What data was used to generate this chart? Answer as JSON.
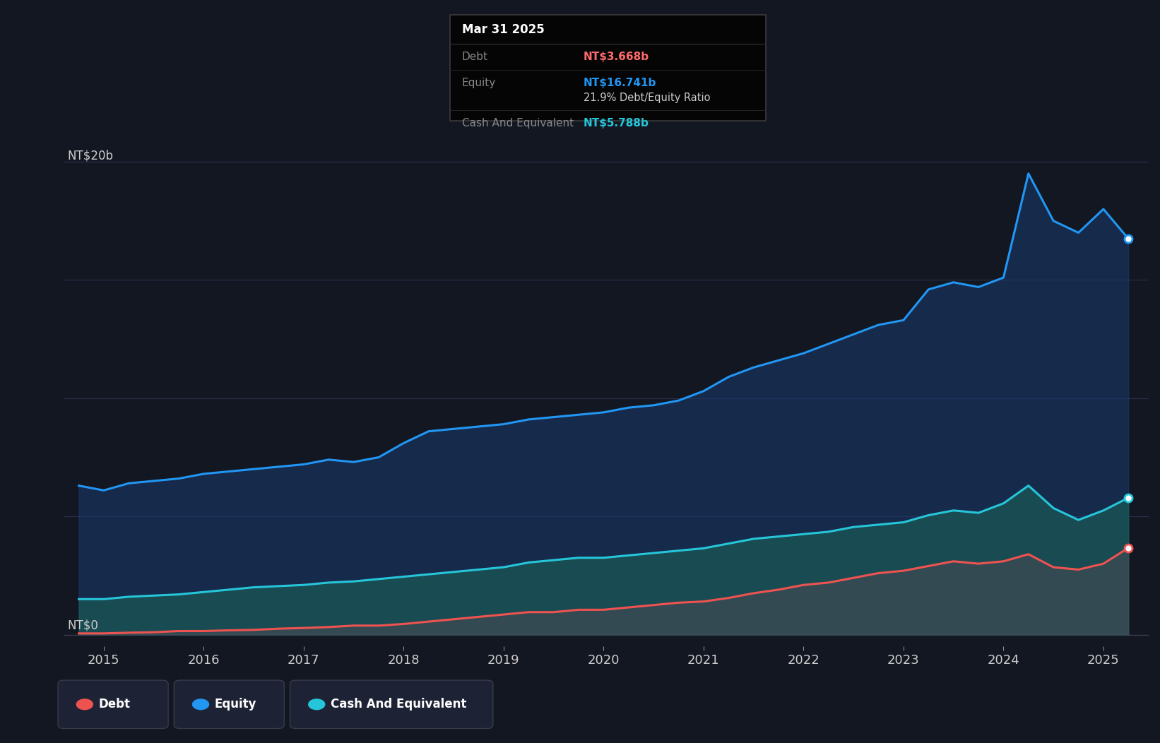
{
  "background_color": "#131722",
  "plot_bg_color": "#131722",
  "grid_color": "#2a2e39",
  "equity_color": "#2196f3",
  "debt_color": "#ef5350",
  "cash_color": "#26c6da",
  "tooltip_bg": "#000000",
  "tooltip_border": "#444444",
  "tooltip_title": "Mar 31 2025",
  "tooltip_debt_label": "Debt",
  "tooltip_debt_value": "NT$3.668b",
  "tooltip_equity_label": "Equity",
  "tooltip_equity_value": "NT$16.741b",
  "tooltip_ratio": "21.9% Debt/Equity Ratio",
  "tooltip_cash_label": "Cash And Equivalent",
  "tooltip_cash_value": "NT$5.788b",
  "legend_labels": [
    "Debt",
    "Equity",
    "Cash And Equivalent"
  ],
  "xlim_start": 2014.6,
  "xlim_end": 2025.45,
  "ylim_min": -0.5,
  "ylim_max": 21.5,
  "xtick_positions": [
    2015,
    2016,
    2017,
    2018,
    2019,
    2020,
    2021,
    2022,
    2023,
    2024,
    2025
  ],
  "xtick_labels": [
    "2015",
    "2016",
    "2017",
    "2018",
    "2019",
    "2020",
    "2021",
    "2022",
    "2023",
    "2024",
    "2025"
  ],
  "times": [
    2014.75,
    2015.0,
    2015.25,
    2015.5,
    2015.75,
    2016.0,
    2016.25,
    2016.5,
    2016.75,
    2017.0,
    2017.25,
    2017.5,
    2017.75,
    2018.0,
    2018.25,
    2018.5,
    2018.75,
    2019.0,
    2019.25,
    2019.5,
    2019.75,
    2020.0,
    2020.25,
    2020.5,
    2020.75,
    2021.0,
    2021.25,
    2021.5,
    2021.75,
    2022.0,
    2022.25,
    2022.5,
    2022.75,
    2023.0,
    2023.25,
    2023.5,
    2023.75,
    2024.0,
    2024.25,
    2024.5,
    2024.75,
    2025.0,
    2025.25
  ],
  "equity": [
    6.3,
    6.1,
    6.4,
    6.5,
    6.6,
    6.8,
    6.9,
    7.0,
    7.1,
    7.2,
    7.4,
    7.3,
    7.5,
    8.1,
    8.6,
    8.7,
    8.8,
    8.9,
    9.1,
    9.2,
    9.3,
    9.4,
    9.6,
    9.7,
    9.9,
    10.3,
    10.9,
    11.3,
    11.6,
    11.9,
    12.3,
    12.7,
    13.1,
    13.3,
    14.6,
    14.9,
    14.7,
    15.1,
    19.5,
    17.5,
    17.0,
    18.0,
    16.741
  ],
  "debt": [
    0.05,
    0.05,
    0.08,
    0.1,
    0.15,
    0.15,
    0.18,
    0.2,
    0.25,
    0.28,
    0.32,
    0.38,
    0.38,
    0.45,
    0.55,
    0.65,
    0.75,
    0.85,
    0.95,
    0.95,
    1.05,
    1.05,
    1.15,
    1.25,
    1.35,
    1.4,
    1.55,
    1.75,
    1.9,
    2.1,
    2.2,
    2.4,
    2.6,
    2.7,
    2.9,
    3.1,
    3.0,
    3.1,
    3.4,
    2.85,
    2.75,
    3.0,
    3.668
  ],
  "cash": [
    1.5,
    1.5,
    1.6,
    1.65,
    1.7,
    1.8,
    1.9,
    2.0,
    2.05,
    2.1,
    2.2,
    2.25,
    2.35,
    2.45,
    2.55,
    2.65,
    2.75,
    2.85,
    3.05,
    3.15,
    3.25,
    3.25,
    3.35,
    3.45,
    3.55,
    3.65,
    3.85,
    4.05,
    4.15,
    4.25,
    4.35,
    4.55,
    4.65,
    4.75,
    5.05,
    5.25,
    5.15,
    5.55,
    6.3,
    5.35,
    4.85,
    5.25,
    5.788
  ]
}
